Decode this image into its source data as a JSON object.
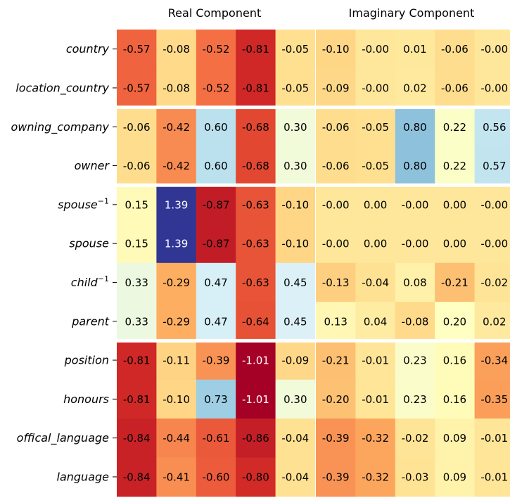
{
  "chart_data": {
    "type": "heatmap",
    "colormap": "RdYlBu",
    "value_range": [
      -1.01,
      1.39
    ],
    "panels": [
      {
        "title": "Real Component",
        "row_labels": [
          "country",
          "location_country",
          "owning_company",
          "owner",
          "spouse",
          "spouse",
          "child",
          "parent",
          "position",
          "honours",
          "offical_language",
          "language"
        ],
        "values": [
          [
            -0.57,
            -0.08,
            -0.52,
            -0.81,
            -0.05
          ],
          [
            -0.57,
            -0.08,
            -0.52,
            -0.81,
            -0.05
          ],
          [
            -0.06,
            -0.42,
            0.6,
            -0.68,
            0.3
          ],
          [
            -0.06,
            -0.42,
            0.6,
            -0.68,
            0.3
          ],
          [
            0.15,
            1.39,
            -0.87,
            -0.63,
            -0.1
          ],
          [
            0.15,
            1.39,
            -0.87,
            -0.63,
            -0.1
          ],
          [
            0.33,
            -0.29,
            0.47,
            -0.63,
            0.45
          ],
          [
            0.33,
            -0.29,
            0.47,
            -0.64,
            0.45
          ],
          [
            -0.81,
            -0.11,
            -0.39,
            -1.01,
            -0.09
          ],
          [
            -0.81,
            -0.1,
            0.73,
            -1.01,
            0.3
          ],
          [
            -0.84,
            -0.44,
            -0.61,
            -0.86,
            -0.04
          ],
          [
            -0.84,
            -0.41,
            -0.6,
            -0.8,
            -0.04
          ]
        ],
        "labels": [
          [
            "-0.57",
            "-0.08",
            "-0.52",
            "-0.81",
            "-0.05"
          ],
          [
            "-0.57",
            "-0.08",
            "-0.52",
            "-0.81",
            "-0.05"
          ],
          [
            "-0.06",
            "-0.42",
            "0.60",
            "-0.68",
            "0.30"
          ],
          [
            "-0.06",
            "-0.42",
            "0.60",
            "-0.68",
            "0.30"
          ],
          [
            "0.15",
            "1.39",
            "-0.87",
            "-0.63",
            "-0.10"
          ],
          [
            "0.15",
            "1.39",
            "-0.87",
            "-0.63",
            "-0.10"
          ],
          [
            "0.33",
            "-0.29",
            "0.47",
            "-0.63",
            "0.45"
          ],
          [
            "0.33",
            "-0.29",
            "0.47",
            "-0.64",
            "0.45"
          ],
          [
            "-0.81",
            "-0.11",
            "-0.39",
            "-1.01",
            "-0.09"
          ],
          [
            "-0.81",
            "-0.10",
            "0.73",
            "-1.01",
            "0.30"
          ],
          [
            "-0.84",
            "-0.44",
            "-0.61",
            "-0.86",
            "-0.04"
          ],
          [
            "-0.84",
            "-0.41",
            "-0.60",
            "-0.80",
            "-0.04"
          ]
        ]
      },
      {
        "title": "Imaginary Component",
        "values": [
          [
            -0.1,
            -0.0,
            0.01,
            -0.06,
            -0.0
          ],
          [
            -0.09,
            -0.0,
            0.02,
            -0.06,
            -0.0
          ],
          [
            -0.06,
            -0.05,
            0.8,
            0.22,
            0.56
          ],
          [
            -0.06,
            -0.05,
            0.8,
            0.22,
            0.57
          ],
          [
            -0.0,
            0.0,
            -0.0,
            0.0,
            -0.0
          ],
          [
            -0.0,
            0.0,
            -0.0,
            0.0,
            -0.0
          ],
          [
            -0.13,
            -0.04,
            0.08,
            -0.21,
            -0.02
          ],
          [
            0.13,
            0.04,
            -0.08,
            0.2,
            0.02
          ],
          [
            -0.21,
            -0.01,
            0.23,
            0.16,
            -0.34
          ],
          [
            -0.2,
            -0.01,
            0.23,
            0.16,
            -0.35
          ],
          [
            -0.39,
            -0.32,
            -0.02,
            0.09,
            -0.01
          ],
          [
            -0.39,
            -0.32,
            -0.03,
            0.09,
            -0.01
          ]
        ],
        "labels": [
          [
            "-0.10",
            "-0.00",
            "0.01",
            "-0.06",
            "-0.00"
          ],
          [
            "-0.09",
            "-0.00",
            "0.02",
            "-0.06",
            "-0.00"
          ],
          [
            "-0.06",
            "-0.05",
            "0.80",
            "0.22",
            "0.56"
          ],
          [
            "-0.06",
            "-0.05",
            "0.80",
            "0.22",
            "0.57"
          ],
          [
            "-0.00",
            "0.00",
            "-0.00",
            "0.00",
            "-0.00"
          ],
          [
            "-0.00",
            "0.00",
            "-0.00",
            "0.00",
            "-0.00"
          ],
          [
            "-0.13",
            "-0.04",
            "0.08",
            "-0.21",
            "-0.02"
          ],
          [
            "0.13",
            "0.04",
            "-0.08",
            "0.20",
            "0.02"
          ],
          [
            "-0.21",
            "-0.01",
            "0.23",
            "0.16",
            "-0.34"
          ],
          [
            "-0.20",
            "-0.01",
            "0.23",
            "0.16",
            "-0.35"
          ],
          [
            "-0.39",
            "-0.32",
            "-0.02",
            "0.09",
            "-0.01"
          ],
          [
            "-0.39",
            "-0.32",
            "-0.03",
            "0.09",
            "-0.01"
          ]
        ]
      }
    ],
    "row_superscripts": [
      "",
      "",
      "",
      "",
      "−1",
      "",
      "−1",
      "",
      "",
      "",
      "",
      ""
    ],
    "row_groups": [
      [
        0,
        1
      ],
      [
        2,
        3
      ],
      [
        4,
        5,
        6,
        7
      ],
      [
        8,
        9,
        10,
        11
      ]
    ],
    "grid": false
  }
}
